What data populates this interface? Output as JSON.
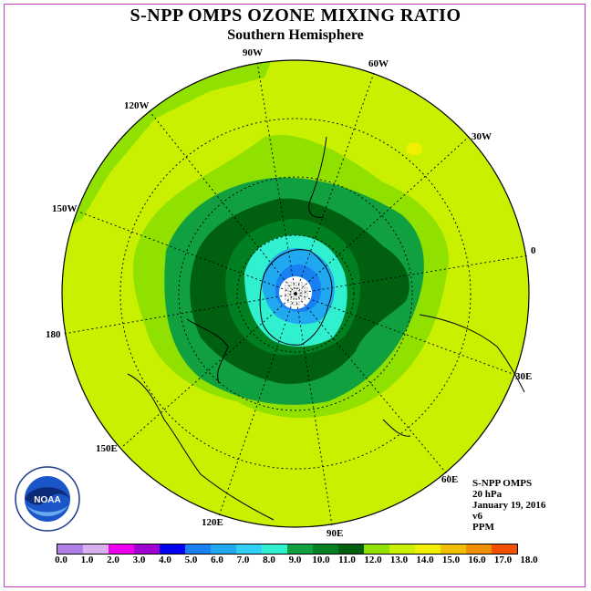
{
  "title": "S-NPP OMPS OZONE MIXING RATIO",
  "subtitle": "Southern Hemisphere",
  "meridian_labels": [
    "90W",
    "60W",
    "30W",
    "0",
    "30E",
    "60E",
    "90E",
    "120E",
    "150E",
    "180",
    "150W",
    "120W"
  ],
  "info": {
    "instrument": "S-NPP OMPS",
    "level": "20 hPa",
    "date": "January 19, 2016",
    "version": "v6",
    "units": "PPM"
  },
  "logo": {
    "text": "NOAA",
    "ring_text": "NATIONAL OCEANIC AND ATMOSPHERIC ADMINISTRATION · U.S. DEPARTMENT OF COMMERCE"
  },
  "legend": {
    "colors": [
      "#b080e8",
      "#d8b0f0",
      "#f000f0",
      "#a000d0",
      "#0000f0",
      "#1880f0",
      "#20a8f0",
      "#30d0f8",
      "#30f0d0",
      "#10a040",
      "#008020",
      "#006010",
      "#90e000",
      "#c8f000",
      "#f0f000",
      "#f0c000",
      "#f09000",
      "#f05000",
      "#f00000",
      "#906040"
    ],
    "tick_labels": [
      "0.0",
      "1.0",
      "2.0",
      "3.0",
      "4.0",
      "5.0",
      "6.0",
      "7.0",
      "8.0",
      "9.0",
      "10.0",
      "11.0",
      "12.0",
      "13.0",
      "14.0",
      "15.0",
      "16.0",
      "17.0",
      "18.0"
    ]
  },
  "field_colors": {
    "background": "#c8f000",
    "band_11": "#90e000",
    "band_10": "#10a040",
    "band_9": "#006010",
    "band_8": "#008020",
    "band_7": "#30f0d0",
    "band_6": "#20a8f0",
    "band_5": "#1880f0",
    "pole": "#ffffff",
    "max_patch": "#f0f000"
  }
}
